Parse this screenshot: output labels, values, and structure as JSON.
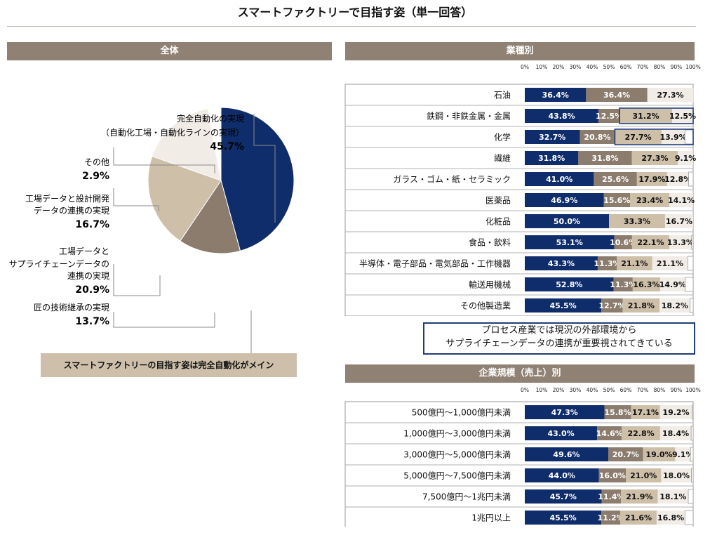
{
  "title": "スマートファクトリーで目指す姿（単一回答）",
  "colors": {
    "navy": "#0f2d6b",
    "brown": "#8b7c6d",
    "tan": "#cdbfa8",
    "cream": "#f1ece6",
    "band": "#8f8173",
    "note": "#cdbfaa"
  },
  "sections": {
    "overall": "全体",
    "industry": "業種別",
    "size": "企業規模（売上）別"
  },
  "summary_note": "スマートファクトリーの目指す姿は完全自動化がメイン",
  "callout": {
    "line1": "プロセス産業では現況の外部環境から",
    "line2": "サプライチェーンデータの連携が重要視されてきている"
  },
  "chart_data": [
    {
      "type": "pie",
      "title": "全体",
      "slices": [
        {
          "label_lines": [
            "完全自動化の実現",
            "（自動化工場・自動化ラインの実現）"
          ],
          "value": 45.7,
          "value_label": "45.7%"
        },
        {
          "label_lines": [
            "匠の技術継承の実現"
          ],
          "value": 13.7,
          "value_label": "13.7%"
        },
        {
          "label_lines": [
            "工場データと",
            "サプライチェーンデータの",
            "連携の実現"
          ],
          "value": 20.9,
          "value_label": "20.9%"
        },
        {
          "label_lines": [
            "工場データと設計開発",
            "データの連携の実現"
          ],
          "value": 16.7,
          "value_label": "16.7%"
        },
        {
          "label_lines": [
            "その他"
          ],
          "value": 2.9,
          "value_label": "2.9%"
        }
      ]
    },
    {
      "type": "bar",
      "orientation": "horizontal",
      "stacked": true,
      "title": "業種別",
      "xlim": [
        0,
        100
      ],
      "ticks": [
        "0%",
        "10%",
        "20%",
        "30%",
        "40%",
        "50%",
        "60%",
        "70%",
        "80%",
        "90%",
        "100%"
      ],
      "categories": [
        "石油",
        "鉄鋼・非鉄金属・金属",
        "化学",
        "繊維",
        "ガラス・ゴム・紙・セラミック",
        "医薬品",
        "化粧品",
        "食品・飲料",
        "半導体・電子部品・電気部品・工作機器",
        "輸送用機械",
        "その他製造業"
      ],
      "series": [
        {
          "name": "完全自動化の実現",
          "values": [
            36.4,
            43.8,
            32.7,
            31.8,
            41.0,
            46.9,
            50.0,
            53.1,
            43.3,
            52.8,
            45.5
          ],
          "labels": [
            "36.4%",
            "43.8%",
            "32.7%",
            "31.8%",
            "41.0%",
            "46.9%",
            "50.0%",
            "53.1%",
            "43.3%",
            "52.8%",
            "45.5%"
          ]
        },
        {
          "name": "匠の技術継承の実現",
          "values": [
            36.4,
            12.5,
            20.8,
            31.8,
            25.6,
            15.6,
            0,
            10.6,
            11.3,
            11.3,
            12.7
          ],
          "labels": [
            "36.4%",
            "12.5%",
            "20.8%",
            "31.8%",
            "25.6%",
            "15.6%",
            "",
            "10.6%",
            "11.3%",
            "11.3%",
            "12.7%"
          ]
        },
        {
          "name": "工場データとサプライチェーンデータの連携の実現",
          "values": [
            0,
            31.2,
            27.7,
            27.3,
            17.9,
            23.4,
            33.3,
            22.1,
            21.1,
            16.3,
            21.8
          ],
          "labels": [
            "",
            "31.2%",
            "27.7%",
            "27.3%",
            "17.9%",
            "23.4%",
            "33.3%",
            "22.1%",
            "21.1%",
            "16.3%",
            "21.8%"
          ]
        },
        {
          "name": "工場データと設計開発データの連携の実現",
          "values": [
            27.3,
            12.5,
            13.9,
            9.1,
            12.8,
            14.1,
            16.7,
            13.3,
            21.1,
            14.9,
            18.2
          ],
          "labels": [
            "27.3%",
            "12.5%",
            "13.9%",
            "9.1%",
            "12.8%",
            "14.1%",
            "16.7%",
            "13.3%",
            "21.1%",
            "14.9%",
            "18.2%"
          ]
        },
        {
          "name": "その他",
          "values": [
            0,
            0,
            4.9,
            0,
            2.7,
            0,
            0,
            0.9,
            3.2,
            4.7,
            1.8
          ],
          "labels": [
            "",
            "",
            "",
            "",
            "",
            "",
            "",
            "",
            "",
            "",
            ""
          ]
        }
      ],
      "highlight_rows": [
        1,
        2
      ]
    },
    {
      "type": "bar",
      "orientation": "horizontal",
      "stacked": true,
      "title": "企業規模（売上）別",
      "xlim": [
        0,
        100
      ],
      "ticks": [
        "0%",
        "10%",
        "20%",
        "30%",
        "40%",
        "50%",
        "60%",
        "70%",
        "80%",
        "90%",
        "100%"
      ],
      "categories": [
        "500億円～1,000億円未満",
        "1,000億円～3,000億円未満",
        "3,000億円～5,000億円未満",
        "5,000億円～7,500億円未満",
        "7,500億円～1兆円未満",
        "1兆円以上"
      ],
      "series": [
        {
          "name": "完全自動化の実現",
          "values": [
            47.3,
            43.0,
            49.6,
            44.0,
            45.7,
            45.5
          ],
          "labels": [
            "47.3%",
            "43.0%",
            "49.6%",
            "44.0%",
            "45.7%",
            "45.5%"
          ]
        },
        {
          "name": "匠の技術継承の実現",
          "values": [
            15.8,
            14.6,
            20.7,
            16.0,
            11.4,
            11.2
          ],
          "labels": [
            "15.8%",
            "14.6%",
            "20.7%",
            "16.0%",
            "11.4%",
            "11.2%"
          ]
        },
        {
          "name": "工場データとサプライチェーンデータの連携の実現",
          "values": [
            17.1,
            22.8,
            19.0,
            21.0,
            21.9,
            21.6
          ],
          "labels": [
            "17.1%",
            "22.8%",
            "19.0%",
            "21.0%",
            "21.9%",
            "21.6%"
          ]
        },
        {
          "name": "工場データと設計開発データの連携の実現",
          "values": [
            19.2,
            18.4,
            9.1,
            18.0,
            18.1,
            16.8
          ],
          "labels": [
            "19.2%",
            "18.4%",
            "9.1%",
            "18.0%",
            "18.1%",
            "16.8%"
          ]
        },
        {
          "name": "その他",
          "values": [
            0.6,
            1.2,
            1.6,
            1.0,
            2.9,
            4.9
          ],
          "labels": [
            "",
            "",
            "",
            "",
            "",
            ""
          ]
        }
      ]
    }
  ]
}
